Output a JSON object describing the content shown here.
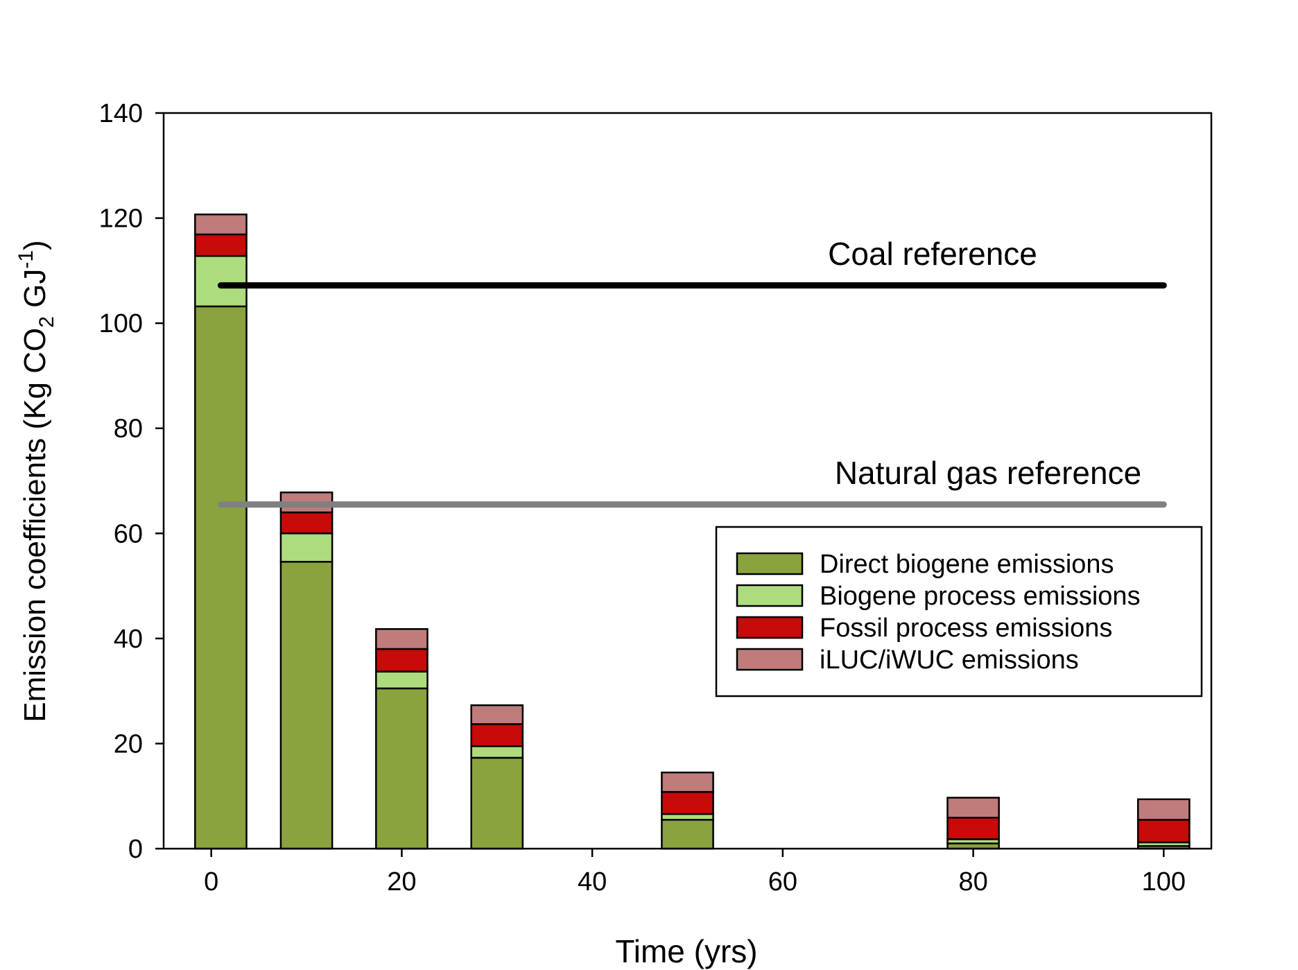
{
  "chart_data": {
    "type": "bar",
    "stacked": true,
    "title": "",
    "xlabel": "Time (yrs)",
    "ylabel": {
      "prefix": "Emission coefficients (Kg CO",
      "sub": "2",
      "mid": " GJ",
      "sup": "-1",
      "suffix": ")"
    },
    "xlim": [
      -5,
      105
    ],
    "ylim": [
      0,
      140
    ],
    "x_ticks": [
      0,
      20,
      40,
      60,
      80,
      100
    ],
    "y_ticks": [
      0,
      20,
      40,
      60,
      80,
      100,
      120,
      140
    ],
    "bar_width_years": 5.4,
    "x": [
      1,
      10,
      20,
      30,
      50,
      80,
      100
    ],
    "series": [
      {
        "name": "Direct biogene emissions",
        "color": "#8aa33f",
        "values": [
          103.2,
          54.6,
          30.5,
          17.3,
          5.5,
          1.0,
          0.5
        ]
      },
      {
        "name": "Biogene process emissions",
        "color": "#addc7e",
        "values": [
          9.6,
          5.4,
          3.2,
          2.2,
          1.1,
          0.8,
          0.7
        ]
      },
      {
        "name": "Fossil process emissions",
        "color": "#c80a08",
        "values": [
          4.1,
          4.0,
          4.3,
          4.2,
          4.2,
          4.1,
          4.3
        ]
      },
      {
        "name": "iLUC/iWUC emissions",
        "color": "#c07b7b",
        "values": [
          3.8,
          3.8,
          3.8,
          3.6,
          3.7,
          3.8,
          3.9
        ]
      }
    ],
    "reference_lines": [
      {
        "label": "Coal reference",
        "value": 107.2,
        "x_start": 1,
        "x_end": 100,
        "color": "#000000"
      },
      {
        "label": "Natural gas reference",
        "value": 65.5,
        "x_start": 1,
        "x_end": 100,
        "color": "#808080"
      }
    ],
    "legend_position": "center-right",
    "grid": false
  }
}
